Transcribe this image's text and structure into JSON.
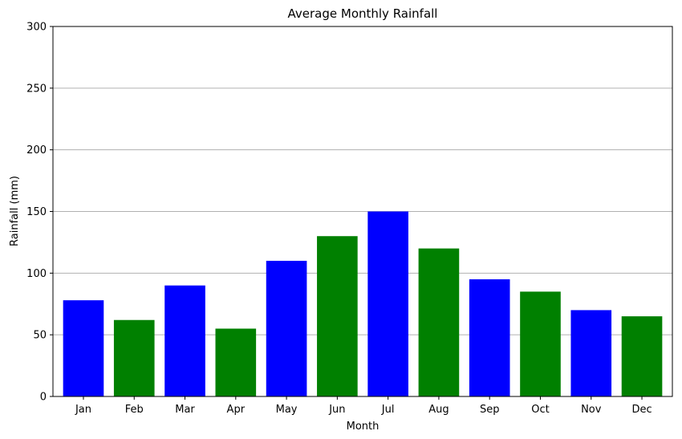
{
  "chart_data": {
    "type": "bar",
    "title": "Average Monthly Rainfall",
    "xlabel": "Month",
    "ylabel": "Rainfall (mm)",
    "categories": [
      "Jan",
      "Feb",
      "Mar",
      "Apr",
      "May",
      "Jun",
      "Jul",
      "Aug",
      "Sep",
      "Oct",
      "Nov",
      "Dec"
    ],
    "values": [
      78,
      62,
      90,
      55,
      110,
      130,
      150,
      120,
      95,
      85,
      70,
      65
    ],
    "bar_colors": [
      "#0000ff",
      "#008000",
      "#0000ff",
      "#008000",
      "#0000ff",
      "#008000",
      "#0000ff",
      "#008000",
      "#0000ff",
      "#008000",
      "#0000ff",
      "#008000"
    ],
    "ylim": [
      0,
      300
    ],
    "yticks": [
      0,
      50,
      100,
      150,
      200,
      250,
      300
    ],
    "grid": "y",
    "grid_color": "#b0b0b0"
  }
}
